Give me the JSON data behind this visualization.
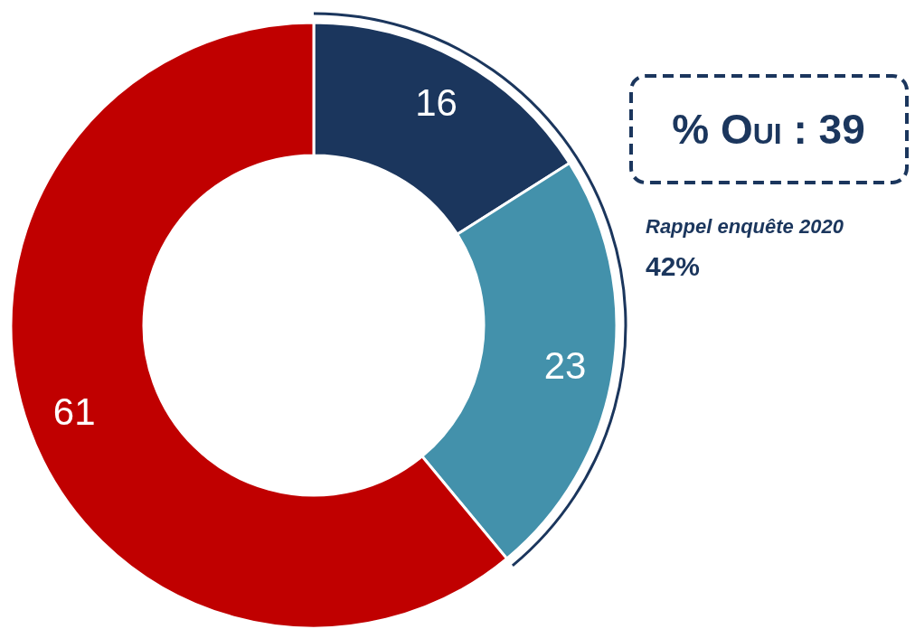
{
  "chart_data": {
    "type": "donut",
    "categories": [
      null,
      null,
      null
    ],
    "values": [
      16,
      23,
      61
    ],
    "colors": [
      "#1b365d",
      "#4391ab",
      "#c00000"
    ],
    "data_labels": true,
    "annotations": [
      "% Oui : 39",
      "Rappel enquête 2020",
      "42%"
    ]
  }
}
